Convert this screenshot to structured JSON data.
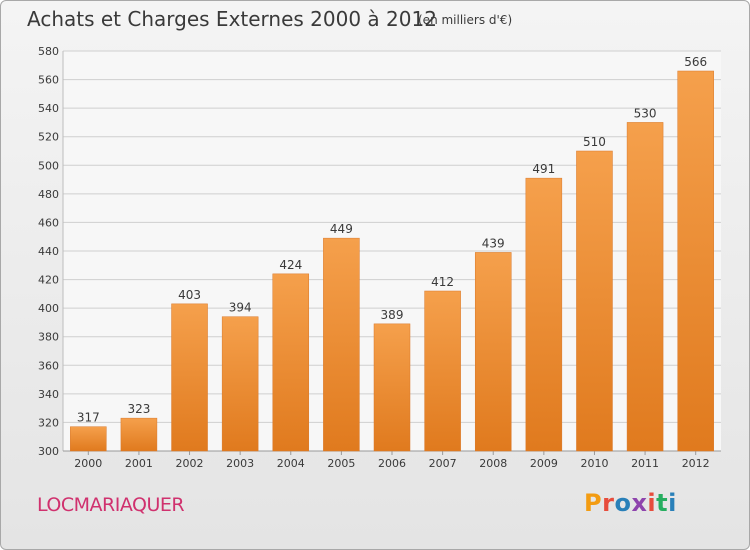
{
  "header": {
    "title": "Achats et Charges Externes 2000 à 2012",
    "subtitle": "(en milliers d'€)"
  },
  "footer": {
    "place": "LOCMARIAQUER",
    "logo_text": "Proxiti",
    "logo_colors": [
      "#f39c12",
      "#e74c3c",
      "#2980b9",
      "#8e44ad",
      "#e74c3c",
      "#27ae60",
      "#2980b9"
    ]
  },
  "colors": {
    "bar_top": "#f5a04c",
    "bar_bottom": "#e07a1e",
    "grid": "#cfcfcf",
    "axis_text": "#3a3a3a"
  },
  "chart_data": {
    "type": "bar",
    "title": "Achats et Charges Externes 2000 à 2012",
    "subtitle": "(en milliers d'€)",
    "categories": [
      "2000",
      "2001",
      "2002",
      "2003",
      "2004",
      "2005",
      "2006",
      "2007",
      "2008",
      "2009",
      "2010",
      "2011",
      "2012"
    ],
    "values": [
      317,
      323,
      403,
      394,
      424,
      449,
      389,
      412,
      439,
      491,
      510,
      530,
      566
    ],
    "ylim": [
      300,
      580
    ],
    "yticks": [
      300,
      320,
      340,
      360,
      380,
      400,
      420,
      440,
      460,
      480,
      500,
      520,
      540,
      560,
      580
    ],
    "grid": true,
    "data_labels": true
  }
}
